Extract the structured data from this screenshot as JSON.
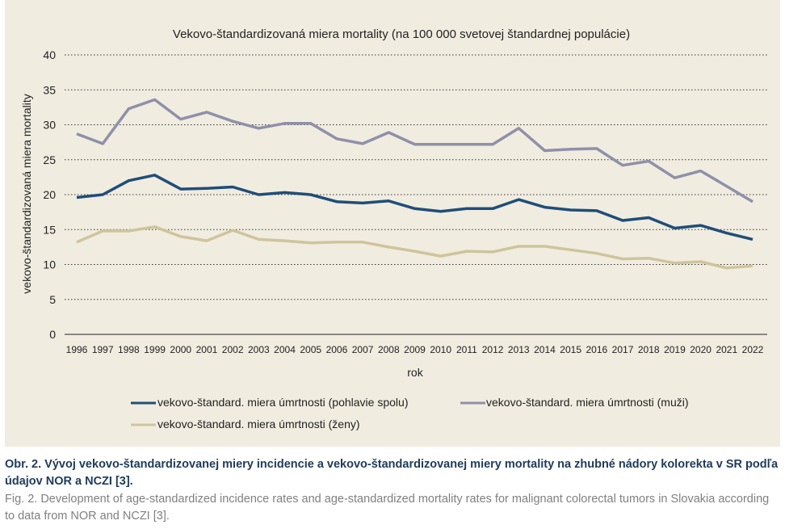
{
  "chart_data": {
    "type": "line",
    "title": "Vekovo-štandardizovaná miera mortality (na 100 000 svetovej štandardnej populácie)",
    "xlabel": "rok",
    "ylabel": "vekovo-štandardizovaná miera mortality",
    "ylim": [
      0,
      40
    ],
    "yticks": [
      "0",
      "5",
      "10",
      "15",
      "20",
      "25",
      "30",
      "35",
      "40"
    ],
    "ytick_values": [
      0,
      5,
      10,
      15,
      20,
      25,
      30,
      35,
      40
    ],
    "grid": "horizontal-dotted",
    "legend_position": "bottom",
    "x": [
      "1996",
      "1997",
      "1998",
      "1999",
      "2000",
      "2001",
      "2002",
      "2003",
      "2004",
      "2005",
      "2006",
      "2007",
      "2008",
      "2009",
      "2010",
      "2011",
      "2012",
      "2013",
      "2014",
      "2015",
      "2016",
      "2017",
      "2018",
      "2019",
      "2020",
      "2021",
      "2022"
    ],
    "series": [
      {
        "name": "vekovo-štandard. miera úmrtnosti (pohlavie spolu)",
        "color": "#1f4e79",
        "values": [
          19.6,
          20.0,
          22.0,
          22.8,
          20.8,
          20.9,
          21.1,
          20.0,
          20.3,
          20.0,
          19.0,
          18.8,
          19.1,
          18.0,
          17.6,
          18.0,
          18.0,
          19.3,
          18.2,
          17.8,
          17.7,
          16.3,
          16.7,
          15.2,
          15.6,
          14.5,
          13.6
        ]
      },
      {
        "name": "vekovo-štandard. miera úmrtnosti (muži)",
        "color": "#8f90a9",
        "values": [
          28.7,
          27.3,
          32.3,
          33.6,
          30.8,
          31.8,
          30.5,
          29.5,
          30.2,
          30.2,
          28.0,
          27.3,
          28.9,
          27.2,
          27.2,
          27.2,
          27.2,
          29.5,
          26.3,
          26.5,
          26.6,
          24.2,
          24.8,
          22.4,
          23.4,
          21.2,
          19.0
        ]
      },
      {
        "name": "vekovo-štandard. miera úmrtnosti (ženy)",
        "color": "#cfc49b",
        "values": [
          13.2,
          14.8,
          14.8,
          15.4,
          14.0,
          13.4,
          14.9,
          13.6,
          13.4,
          13.1,
          13.2,
          13.2,
          12.5,
          11.9,
          11.2,
          11.9,
          11.8,
          12.6,
          12.6,
          12.1,
          11.6,
          10.8,
          10.9,
          10.2,
          10.4,
          9.5,
          9.8
        ]
      }
    ]
  },
  "caption": {
    "slovak": "Obr. 2. Vývoj vekovo-štandardizovanej miery incidencie a vekovo-štandardizovanej miery mortality na zhubné nádory kolorekta v SR podľa údajov NOR a NCZI [3].",
    "english": "Fig. 2. Development of age-standardized incidence rates and age-standardized mortality rates for malignant colorectal tumors in Slovakia according to data from NOR and NCZI [3]."
  },
  "colors": {
    "panel_background": "#f1ece0",
    "caption_bold": "#1e3b5a",
    "caption_regular": "#808080"
  }
}
